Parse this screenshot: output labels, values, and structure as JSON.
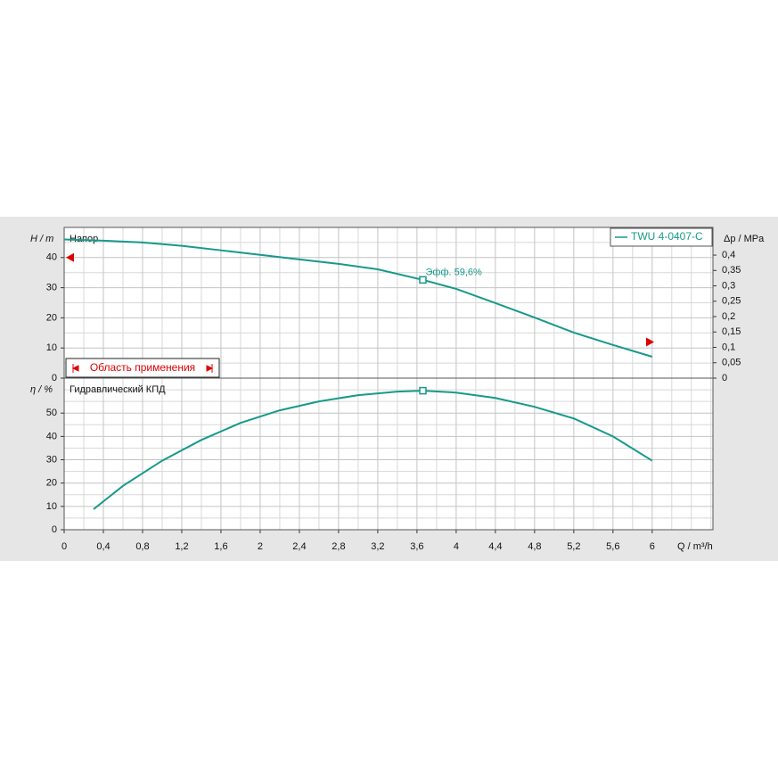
{
  "chart_data": [
    {
      "type": "line",
      "ylabel": "H / m",
      "curve_label": "Напор",
      "y2label": "Δp / MPa",
      "x": [
        0,
        0.4,
        0.8,
        1.2,
        1.6,
        2.0,
        2.4,
        2.8,
        3.2,
        3.66,
        4.0,
        4.4,
        4.8,
        5.2,
        5.6,
        6.0
      ],
      "series": [
        {
          "name": "TWU 4-0407-C",
          "color": "#17998a",
          "values": [
            46,
            45.6,
            45,
            43.9,
            42.4,
            40.9,
            39.4,
            37.9,
            36.1,
            32.6,
            29.6,
            24.9,
            20.1,
            15.1,
            11,
            7.1
          ]
        }
      ],
      "duty_point": {
        "x": 3.66,
        "y": 32.6
      },
      "annotation": "Эфф.  59,6%",
      "range_label": "Область применения",
      "range_limits": [
        40,
        12
      ],
      "xlim": [
        0,
        6.62
      ],
      "ylim": [
        0,
        50
      ],
      "yticks": [
        0,
        10,
        20,
        30,
        40
      ],
      "y2lim": [
        0,
        0.49
      ],
      "y2ticks": [
        0,
        {
          "value": 0.05,
          "label": "0,05"
        },
        {
          "value": 0.1,
          "label": "0,1"
        },
        {
          "value": 0.15,
          "label": "0,15"
        },
        {
          "value": 0.2,
          "label": "0,2"
        },
        {
          "value": 0.25,
          "label": "0,25"
        },
        {
          "value": 0.3,
          "label": "0,3"
        },
        {
          "value": 0.35,
          "label": "0,35"
        },
        {
          "value": 0.4,
          "label": "0,4"
        }
      ],
      "grid": true
    },
    {
      "type": "line",
      "ylabel": "η / %",
      "curve_label": "Гидравлический КПД",
      "xlabel": "Q / m³/h",
      "x": [
        0.3,
        0.6,
        1.0,
        1.4,
        1.8,
        2.2,
        2.6,
        3.0,
        3.4,
        3.66,
        4.0,
        4.4,
        4.8,
        5.2,
        5.6,
        6.0
      ],
      "series": [
        {
          "name": "TWU 4-0407-C",
          "color": "#17998a",
          "values": [
            8.8,
            18.8,
            29.6,
            38.5,
            45.8,
            51.2,
            55,
            57.7,
            59.2,
            59.6,
            58.8,
            56.5,
            52.7,
            47.7,
            40,
            29.6
          ]
        }
      ],
      "duty_point": {
        "x": 3.66,
        "y": 59.6
      },
      "xlim": [
        0,
        6.62
      ],
      "ylim": [
        0,
        65
      ],
      "yticks": [
        0,
        10,
        20,
        30,
        40,
        50
      ],
      "xticks": [
        0,
        {
          "value": 0.4,
          "label": "0,4"
        },
        {
          "value": 0.8,
          "label": "0,8"
        },
        {
          "value": 1.2,
          "label": "1,2"
        },
        {
          "value": 1.6,
          "label": "1,6"
        },
        2,
        {
          "value": 2.4,
          "label": "2,4"
        },
        {
          "value": 2.8,
          "label": "2,8"
        },
        {
          "value": 3.2,
          "label": "3,2"
        },
        {
          "value": 3.6,
          "label": "3,6"
        },
        4,
        {
          "value": 4.4,
          "label": "4,4"
        },
        {
          "value": 4.8,
          "label": "4,8"
        },
        {
          "value": 5.2,
          "label": "5,2"
        },
        {
          "value": 5.6,
          "label": "5,6"
        },
        6
      ],
      "grid": true
    }
  ]
}
